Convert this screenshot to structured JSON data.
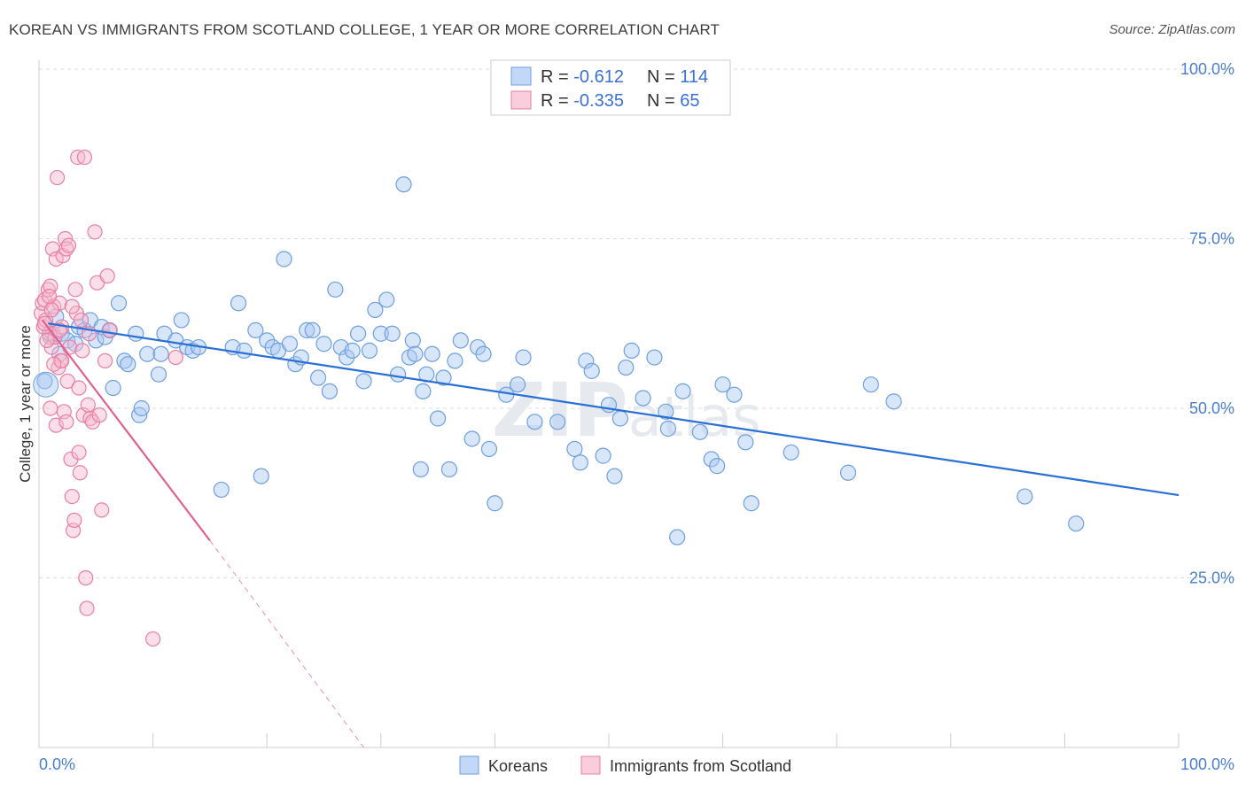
{
  "title": "KOREAN VS IMMIGRANTS FROM SCOTLAND COLLEGE, 1 YEAR OR MORE CORRELATION CHART",
  "source": "Source: ZipAtlas.com",
  "watermark": "ZIPatlas",
  "colors": {
    "koreans_fill": "#a9c8f2",
    "koreans_stroke": "#6e9fe0",
    "koreans_line": "#2a6fd6",
    "scotland_fill": "#f7b8cd",
    "scotland_stroke": "#e87fa4",
    "scotland_line": "#e0608e",
    "value_text": "#3a6fd4",
    "grid": "#dddddd"
  },
  "legend": {
    "rows": [
      {
        "r_label": "R = ",
        "r_value": "-0.612",
        "n_label": "N = ",
        "n_value": "114"
      },
      {
        "r_label": "R = ",
        "r_value": "-0.335",
        "n_label": "N = ",
        "n_value": "65"
      }
    ]
  },
  "chart_data": {
    "type": "scatter",
    "title": "KOREAN VS IMMIGRANTS FROM SCOTLAND COLLEGE, 1 YEAR OR MORE CORRELATION CHART",
    "xlabel": "",
    "ylabel": "College, 1 year or more",
    "xlim": [
      0,
      100
    ],
    "ylim": [
      0,
      100
    ],
    "x_tick_labels": [
      "0.0%",
      "100.0%"
    ],
    "y_tick_labels": [
      "25.0%",
      "50.0%",
      "75.0%",
      "100.0%"
    ],
    "y_ticks": [
      25,
      50,
      75,
      100
    ],
    "grid": true,
    "legend_placement": "bottom",
    "series": [
      {
        "name": "Koreans",
        "R": -0.612,
        "N": 114,
        "trend": {
          "x": [
            0.8,
            100
          ],
          "y": [
            62.5,
            37.2
          ],
          "style": "solid"
        },
        "points": [
          [
            0.5,
            54
          ],
          [
            1.0,
            60.5
          ],
          [
            1.2,
            61
          ],
          [
            1.5,
            63.5
          ],
          [
            1.8,
            58
          ],
          [
            2.0,
            61
          ],
          [
            2.5,
            60
          ],
          [
            3.2,
            59.5
          ],
          [
            3.5,
            62
          ],
          [
            4.0,
            61.5
          ],
          [
            4.5,
            63
          ],
          [
            5.0,
            60
          ],
          [
            5.5,
            62
          ],
          [
            5.8,
            60.5
          ],
          [
            6.2,
            61.5
          ],
          [
            6.5,
            53
          ],
          [
            7.0,
            65.5
          ],
          [
            7.5,
            57
          ],
          [
            7.8,
            56.5
          ],
          [
            8.5,
            61
          ],
          [
            8.8,
            49
          ],
          [
            9.0,
            50
          ],
          [
            9.5,
            58
          ],
          [
            10.5,
            55
          ],
          [
            10.7,
            58
          ],
          [
            11.0,
            61
          ],
          [
            12.0,
            60
          ],
          [
            12.5,
            63
          ],
          [
            13.0,
            59
          ],
          [
            13.5,
            58.5
          ],
          [
            14.0,
            59
          ],
          [
            16.0,
            38
          ],
          [
            17.0,
            59
          ],
          [
            17.5,
            65.5
          ],
          [
            18.0,
            58.5
          ],
          [
            19.0,
            61.5
          ],
          [
            19.5,
            40
          ],
          [
            20.0,
            60
          ],
          [
            20.5,
            59
          ],
          [
            21.0,
            58.5
          ],
          [
            21.5,
            72
          ],
          [
            22.0,
            59.5
          ],
          [
            22.5,
            56.5
          ],
          [
            23.0,
            57.5
          ],
          [
            23.5,
            61.5
          ],
          [
            24.0,
            61.5
          ],
          [
            24.5,
            54.5
          ],
          [
            25.0,
            59.5
          ],
          [
            25.5,
            52.5
          ],
          [
            26.0,
            67.5
          ],
          [
            26.5,
            59
          ],
          [
            27.0,
            57.5
          ],
          [
            27.5,
            58.5
          ],
          [
            28.0,
            61
          ],
          [
            28.5,
            54
          ],
          [
            29.0,
            58.5
          ],
          [
            29.5,
            64.5
          ],
          [
            30.0,
            61
          ],
          [
            30.5,
            66
          ],
          [
            31.0,
            61
          ],
          [
            31.5,
            55
          ],
          [
            32.0,
            83
          ],
          [
            32.5,
            57.5
          ],
          [
            32.8,
            60
          ],
          [
            33.0,
            58
          ],
          [
            33.5,
            41
          ],
          [
            33.7,
            52.5
          ],
          [
            34.0,
            55
          ],
          [
            34.5,
            58
          ],
          [
            35.0,
            48.5
          ],
          [
            35.5,
            54.5
          ],
          [
            36.0,
            41
          ],
          [
            36.5,
            57
          ],
          [
            37.0,
            60
          ],
          [
            38.0,
            45.5
          ],
          [
            38.5,
            59
          ],
          [
            39.0,
            58
          ],
          [
            39.5,
            44
          ],
          [
            40.0,
            36
          ],
          [
            41.0,
            52
          ],
          [
            42.0,
            53.5
          ],
          [
            42.5,
            57.5
          ],
          [
            43.5,
            48
          ],
          [
            45.5,
            48
          ],
          [
            47.0,
            44
          ],
          [
            47.5,
            42
          ],
          [
            48.0,
            57
          ],
          [
            48.5,
            55.5
          ],
          [
            49.5,
            43
          ],
          [
            50.0,
            50.5
          ],
          [
            50.5,
            40
          ],
          [
            51.0,
            48.5
          ],
          [
            51.5,
            56
          ],
          [
            52.0,
            58.5
          ],
          [
            53.0,
            51.5
          ],
          [
            54.0,
            57.5
          ],
          [
            55.0,
            49.5
          ],
          [
            55.2,
            47
          ],
          [
            56.0,
            31
          ],
          [
            56.5,
            52.5
          ],
          [
            58.0,
            46.5
          ],
          [
            59.0,
            42.5
          ],
          [
            59.5,
            41.5
          ],
          [
            60.0,
            53.5
          ],
          [
            61.0,
            52
          ],
          [
            62.0,
            45
          ],
          [
            62.5,
            36
          ],
          [
            66.0,
            43.5
          ],
          [
            71.0,
            40.5
          ],
          [
            73.0,
            53.5
          ],
          [
            75.0,
            51
          ],
          [
            86.5,
            37
          ],
          [
            91.0,
            33
          ]
        ]
      },
      {
        "name": "Immigrants from Scotland",
        "R": -0.335,
        "N": 65,
        "trend": {
          "x": [
            0.3,
            15.0
          ],
          "y": [
            63.0,
            30.5
          ],
          "style": "solid"
        },
        "trend_extension": {
          "x": [
            15.0,
            28.5
          ],
          "y": [
            30.5,
            0
          ],
          "style": "dashed"
        },
        "points": [
          [
            0.2,
            64
          ],
          [
            0.3,
            65.5
          ],
          [
            0.4,
            62
          ],
          [
            0.5,
            66
          ],
          [
            0.6,
            63
          ],
          [
            0.8,
            67.5
          ],
          [
            0.9,
            61
          ],
          [
            1.0,
            68
          ],
          [
            1.1,
            59
          ],
          [
            1.2,
            73.5
          ],
          [
            1.3,
            65
          ],
          [
            1.4,
            60.5
          ],
          [
            1.5,
            72
          ],
          [
            1.5,
            47.5
          ],
          [
            1.6,
            84
          ],
          [
            1.7,
            56
          ],
          [
            1.8,
            65.5
          ],
          [
            1.9,
            57
          ],
          [
            2.0,
            62
          ],
          [
            2.1,
            72.5
          ],
          [
            2.2,
            49.5
          ],
          [
            2.3,
            75
          ],
          [
            2.4,
            73.5
          ],
          [
            2.5,
            54
          ],
          [
            2.6,
            74
          ],
          [
            2.7,
            59
          ],
          [
            2.8,
            42.5
          ],
          [
            2.9,
            37
          ],
          [
            3.0,
            32
          ],
          [
            3.1,
            33.5
          ],
          [
            3.2,
            67.5
          ],
          [
            3.3,
            64
          ],
          [
            3.4,
            87
          ],
          [
            3.5,
            43.5
          ],
          [
            3.6,
            40.5
          ],
          [
            3.7,
            63
          ],
          [
            3.9,
            49
          ],
          [
            4.0,
            87
          ],
          [
            4.1,
            25
          ],
          [
            4.2,
            20.5
          ],
          [
            4.4,
            61
          ],
          [
            4.5,
            48.5
          ],
          [
            4.7,
            48
          ],
          [
            4.9,
            76
          ],
          [
            5.1,
            68.5
          ],
          [
            5.3,
            49
          ],
          [
            5.5,
            35
          ],
          [
            5.8,
            57
          ],
          [
            6.0,
            69.5
          ],
          [
            6.2,
            61.5
          ],
          [
            10.0,
            16
          ],
          [
            12.0,
            57.5
          ],
          [
            1.0,
            50
          ],
          [
            0.7,
            60
          ],
          [
            2.0,
            57
          ],
          [
            1.3,
            56.5
          ],
          [
            3.8,
            58.5
          ],
          [
            0.5,
            62.5
          ],
          [
            1.8,
            61.5
          ],
          [
            2.9,
            65
          ],
          [
            4.3,
            50.5
          ],
          [
            0.9,
            66.5
          ],
          [
            2.4,
            48
          ],
          [
            3.5,
            53
          ],
          [
            1.1,
            64.5
          ]
        ]
      }
    ]
  },
  "bottom_legend": [
    "Koreans",
    "Immigrants from Scotland"
  ]
}
